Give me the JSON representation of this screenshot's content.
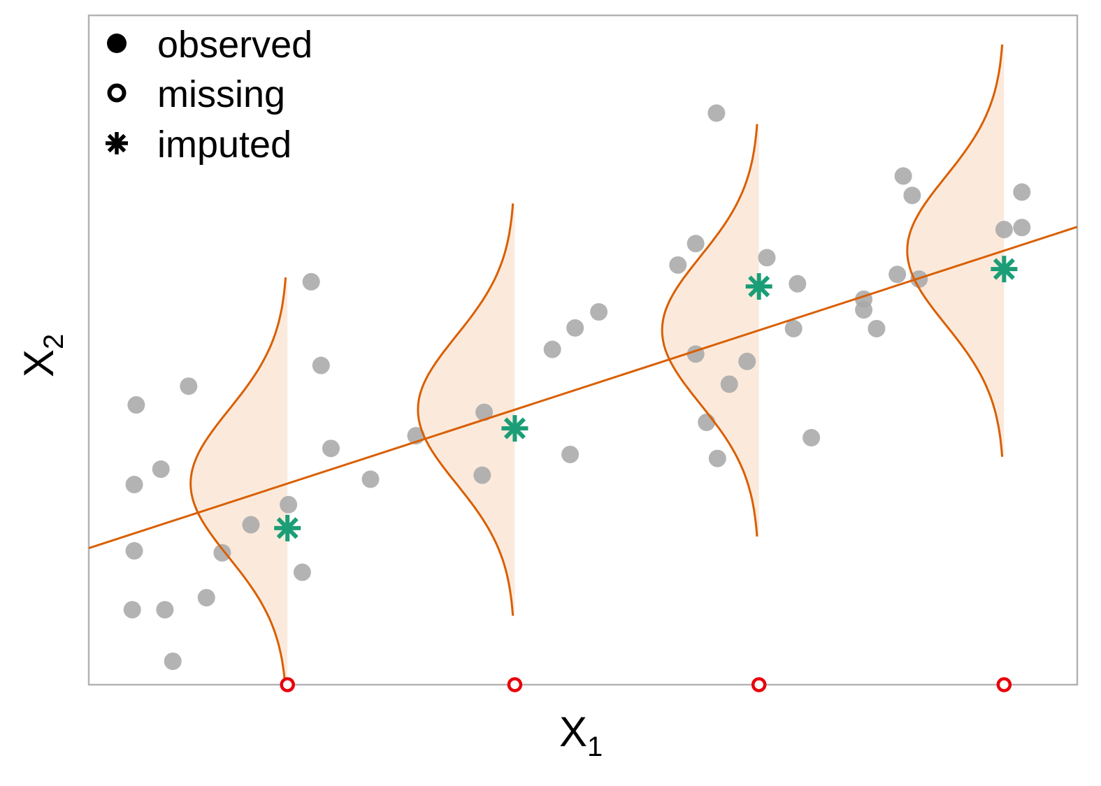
{
  "chart_data": {
    "type": "scatter",
    "xlabel": "X",
    "xlabel_subscript": "1",
    "ylabel": "X",
    "ylabel_subscript": "2",
    "xlim": [
      0,
      10
    ],
    "ylim": [
      0,
      10
    ],
    "grid": false,
    "axis_ticks": false,
    "legend": {
      "placement": "top-left",
      "entries": [
        {
          "label": "observed",
          "marker": "filled-circle"
        },
        {
          "label": "missing",
          "marker": "open-circle"
        },
        {
          "label": "imputed",
          "marker": "asterisk"
        }
      ]
    },
    "colors": {
      "observed": "#a9a9a9",
      "missing": "#e8000b",
      "imputed": "#1b9e77",
      "regression": "#d95f02",
      "density_fill": "#fbeadc",
      "frame": "#b3b3b3",
      "legend_marker": "#000000"
    },
    "regression_line": {
      "intercept": 2.04,
      "slope": 0.48
    },
    "density": {
      "sd": 1.1,
      "spread_sd": 2.8,
      "peak_width": 0.98
    },
    "observed": [
      {
        "x": 0.48,
        "y": 4.18
      },
      {
        "x": 0.46,
        "y": 2.99
      },
      {
        "x": 0.46,
        "y": 2.0
      },
      {
        "x": 0.44,
        "y": 1.12
      },
      {
        "x": 0.73,
        "y": 3.22
      },
      {
        "x": 0.77,
        "y": 1.12
      },
      {
        "x": 0.85,
        "y": 0.35
      },
      {
        "x": 1.01,
        "y": 4.46
      },
      {
        "x": 1.19,
        "y": 1.3
      },
      {
        "x": 1.35,
        "y": 1.97
      },
      {
        "x": 1.64,
        "y": 2.39
      },
      {
        "x": 2.02,
        "y": 2.69
      },
      {
        "x": 2.25,
        "y": 6.02
      },
      {
        "x": 2.35,
        "y": 4.77
      },
      {
        "x": 2.16,
        "y": 1.68
      },
      {
        "x": 2.45,
        "y": 3.53
      },
      {
        "x": 2.85,
        "y": 3.07
      },
      {
        "x": 3.31,
        "y": 3.72
      },
      {
        "x": 4.0,
        "y": 4.07
      },
      {
        "x": 3.98,
        "y": 3.13
      },
      {
        "x": 4.69,
        "y": 5.01
      },
      {
        "x": 4.87,
        "y": 3.44
      },
      {
        "x": 4.92,
        "y": 5.33
      },
      {
        "x": 5.16,
        "y": 5.57
      },
      {
        "x": 5.96,
        "y": 6.27
      },
      {
        "x": 6.14,
        "y": 4.94
      },
      {
        "x": 6.14,
        "y": 6.59
      },
      {
        "x": 6.35,
        "y": 8.54
      },
      {
        "x": 6.25,
        "y": 3.92
      },
      {
        "x": 6.48,
        "y": 4.49
      },
      {
        "x": 6.36,
        "y": 3.38
      },
      {
        "x": 6.66,
        "y": 4.83
      },
      {
        "x": 6.86,
        "y": 6.38
      },
      {
        "x": 7.13,
        "y": 5.32
      },
      {
        "x": 7.17,
        "y": 5.99
      },
      {
        "x": 7.31,
        "y": 3.69
      },
      {
        "x": 7.84,
        "y": 5.76
      },
      {
        "x": 7.84,
        "y": 5.6
      },
      {
        "x": 7.97,
        "y": 5.32
      },
      {
        "x": 8.18,
        "y": 6.13
      },
      {
        "x": 8.24,
        "y": 7.6
      },
      {
        "x": 8.33,
        "y": 7.31
      },
      {
        "x": 8.4,
        "y": 6.06
      },
      {
        "x": 9.26,
        "y": 6.8
      },
      {
        "x": 9.44,
        "y": 6.83
      },
      {
        "x": 9.44,
        "y": 7.36
      }
    ],
    "missing": [
      {
        "x": 2.01,
        "y": 0
      },
      {
        "x": 4.31,
        "y": 0
      },
      {
        "x": 6.78,
        "y": 0
      },
      {
        "x": 9.26,
        "y": 0
      }
    ],
    "imputed": [
      {
        "x": 2.01,
        "y": 2.34
      },
      {
        "x": 4.31,
        "y": 3.83
      },
      {
        "x": 6.78,
        "y": 5.95
      },
      {
        "x": 9.26,
        "y": 6.21
      }
    ]
  }
}
